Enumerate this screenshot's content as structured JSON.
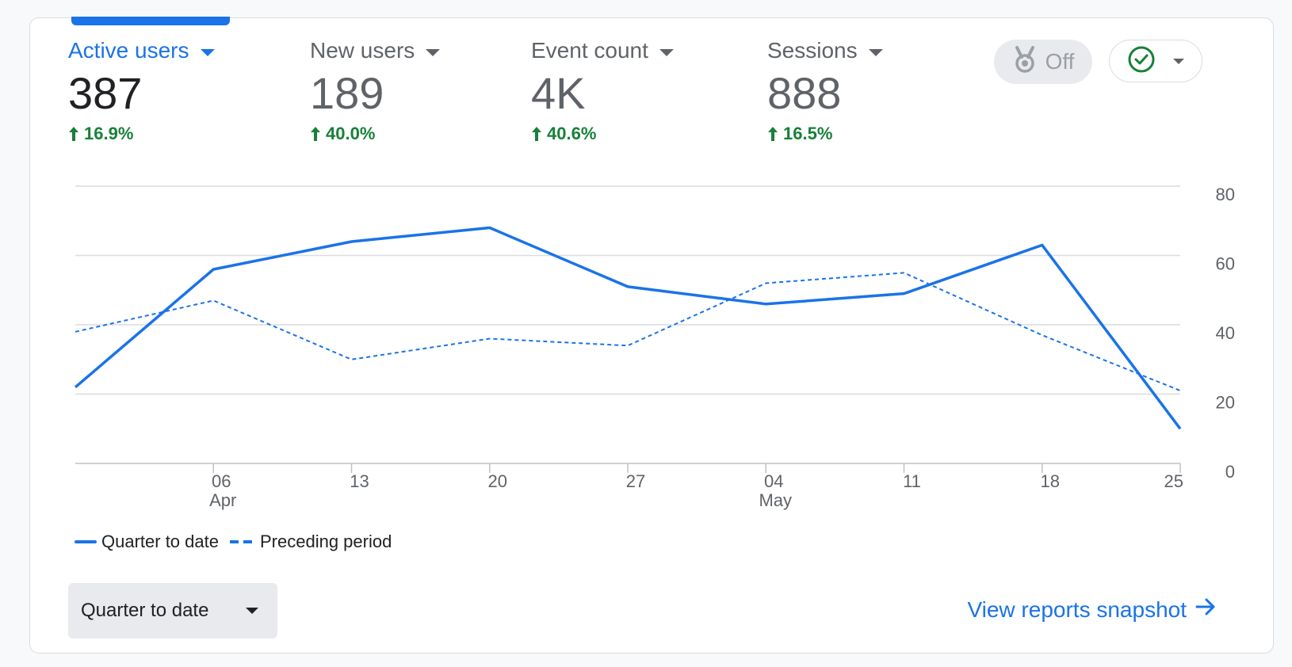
{
  "metrics": [
    {
      "label": "Active users",
      "value": "387",
      "change": "16.9%"
    },
    {
      "label": "New users",
      "value": "189",
      "change": "40.0%"
    },
    {
      "label": "Event count",
      "value": "4K",
      "change": "40.6%"
    },
    {
      "label": "Sessions",
      "value": "888",
      "change": "16.5%"
    }
  ],
  "toggle": {
    "label": "Off"
  },
  "colors": {
    "accent": "#1a73e8",
    "positive": "#188038",
    "muted": "#5f6368"
  },
  "chart_data": {
    "type": "line",
    "x": [
      "",
      "06",
      "13",
      "20",
      "27",
      "04",
      "11",
      "18",
      "25"
    ],
    "x_sublabels": [
      "",
      "Apr",
      "",
      "",
      "",
      "May",
      "",
      "",
      ""
    ],
    "series": [
      {
        "name": "Quarter to date",
        "style": "solid",
        "values": [
          22,
          56,
          64,
          68,
          51,
          46,
          49,
          63,
          10
        ]
      },
      {
        "name": "Preceding period",
        "style": "dashed",
        "values": [
          38,
          47,
          30,
          36,
          34,
          52,
          55,
          37,
          21
        ]
      }
    ],
    "ylim": [
      0,
      80
    ],
    "yticks": [
      "0",
      "20",
      "40",
      "60",
      "80"
    ],
    "grid": true,
    "legend": "bottom-left"
  },
  "legend": {
    "solid_label": "Quarter to date",
    "dashed_label": "Preceding period"
  },
  "date_range": {
    "selected": "Quarter to date"
  },
  "footer": {
    "snapshot_link": "View reports snapshot"
  }
}
